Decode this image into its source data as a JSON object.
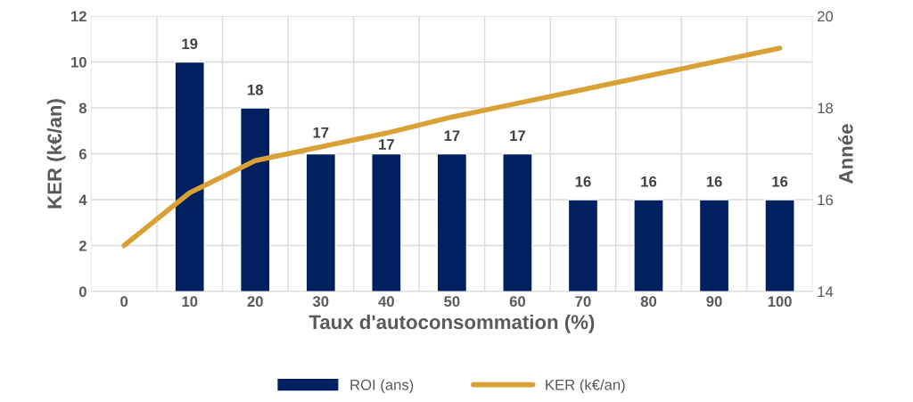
{
  "chart_data": {
    "type": "bar",
    "xlabel": "Taux d'autoconsommation (%)",
    "ylabel": "KER (k€/an)",
    "y2label": "Année",
    "categories": [
      "0",
      "10",
      "20",
      "30",
      "40",
      "50",
      "60",
      "70",
      "80",
      "90",
      "100"
    ],
    "series": [
      {
        "name": "ROI (ans)",
        "type": "bar",
        "axis": "y2",
        "color": "#002060",
        "values": [
          null,
          19,
          18,
          17,
          17,
          17,
          17,
          16,
          16,
          16,
          16
        ],
        "value_labels": [
          null,
          "19",
          "18",
          "17",
          "17",
          "17",
          "17",
          "16",
          "16",
          "16",
          "16"
        ]
      },
      {
        "name": "KER (k€/an)",
        "type": "line",
        "color": "#d9a035",
        "values": [
          2.0,
          4.3,
          5.7,
          6.3,
          6.9,
          7.6,
          8.2,
          8.8,
          9.4,
          10.0,
          10.6
        ]
      }
    ],
    "ylim": [
      0,
      12
    ],
    "yticks": [
      0,
      2,
      4,
      6,
      8,
      10,
      12
    ],
    "y2lim": [
      14,
      20
    ],
    "y2ticks": [
      14,
      16,
      18,
      20
    ],
    "grid": true,
    "legend": "bottom",
    "marker": "none",
    "line_style": "solid"
  }
}
